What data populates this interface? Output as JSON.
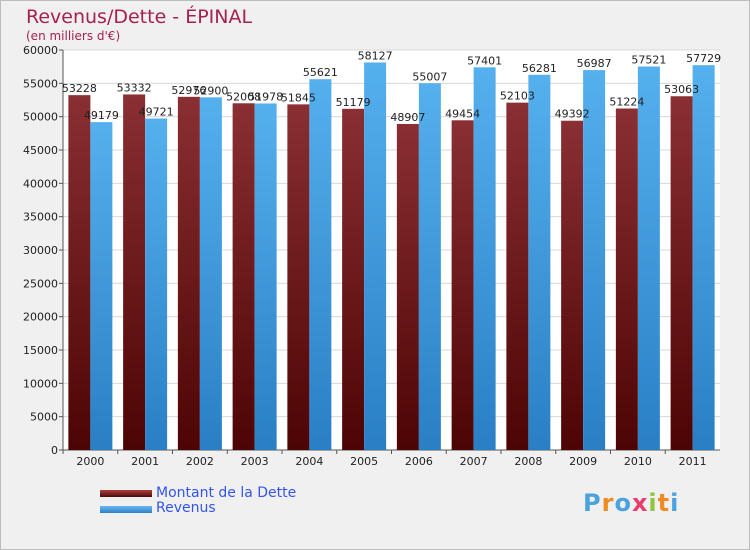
{
  "header": {
    "title": "Revenus/Dette - ÉPINAL",
    "subtitle": "(en milliers d'€)"
  },
  "legend": {
    "items": [
      {
        "label": "Montant de la Dette",
        "color": "#7a1f22"
      },
      {
        "label": "Revenus",
        "color": "#3f9fe4"
      }
    ]
  },
  "logo": {
    "text": "Proxiti",
    "letter_colors": [
      "#4aa3df",
      "#f08a24",
      "#4aa3df",
      "#e83d6f",
      "#8dc63f",
      "#f08a24",
      "#4aa3df"
    ]
  },
  "chart_data": {
    "type": "bar",
    "title": "Revenus/Dette - ÉPINAL",
    "subtitle": "(en milliers d'€)",
    "xlabel": "",
    "ylabel": "",
    "ylim": [
      0,
      60000
    ],
    "yticks": [
      0,
      5000,
      10000,
      15000,
      20000,
      25000,
      30000,
      35000,
      40000,
      45000,
      50000,
      55000,
      60000
    ],
    "grid": true,
    "legend_position": "bottom-left",
    "categories": [
      "2000",
      "2001",
      "2002",
      "2003",
      "2004",
      "2005",
      "2006",
      "2007",
      "2008",
      "2009",
      "2010",
      "2011"
    ],
    "series": [
      {
        "name": "Montant de la Dette",
        "color": "#7a1f22",
        "values": [
          53228,
          53332,
          52976,
          52008,
          51845,
          51179,
          48907,
          49454,
          52103,
          49392,
          51224,
          53063
        ],
        "labels": [
          "53228",
          "53332",
          "52976",
          "52008",
          "51845",
          "51179",
          "48907",
          "49454",
          "52103",
          "49392",
          "51224",
          "53063"
        ]
      },
      {
        "name": "Revenus",
        "color": "#3f9fe4",
        "values": [
          49179,
          49721,
          52900,
          51978,
          55621,
          58127,
          55007,
          57401,
          56281,
          56987,
          57521,
          57729
        ],
        "labels": [
          "49179",
          "49721",
          "52900",
          "51978",
          "55621",
          "58127",
          "55007",
          "57401",
          "56281",
          "56987",
          "57521",
          "57729"
        ]
      }
    ]
  }
}
